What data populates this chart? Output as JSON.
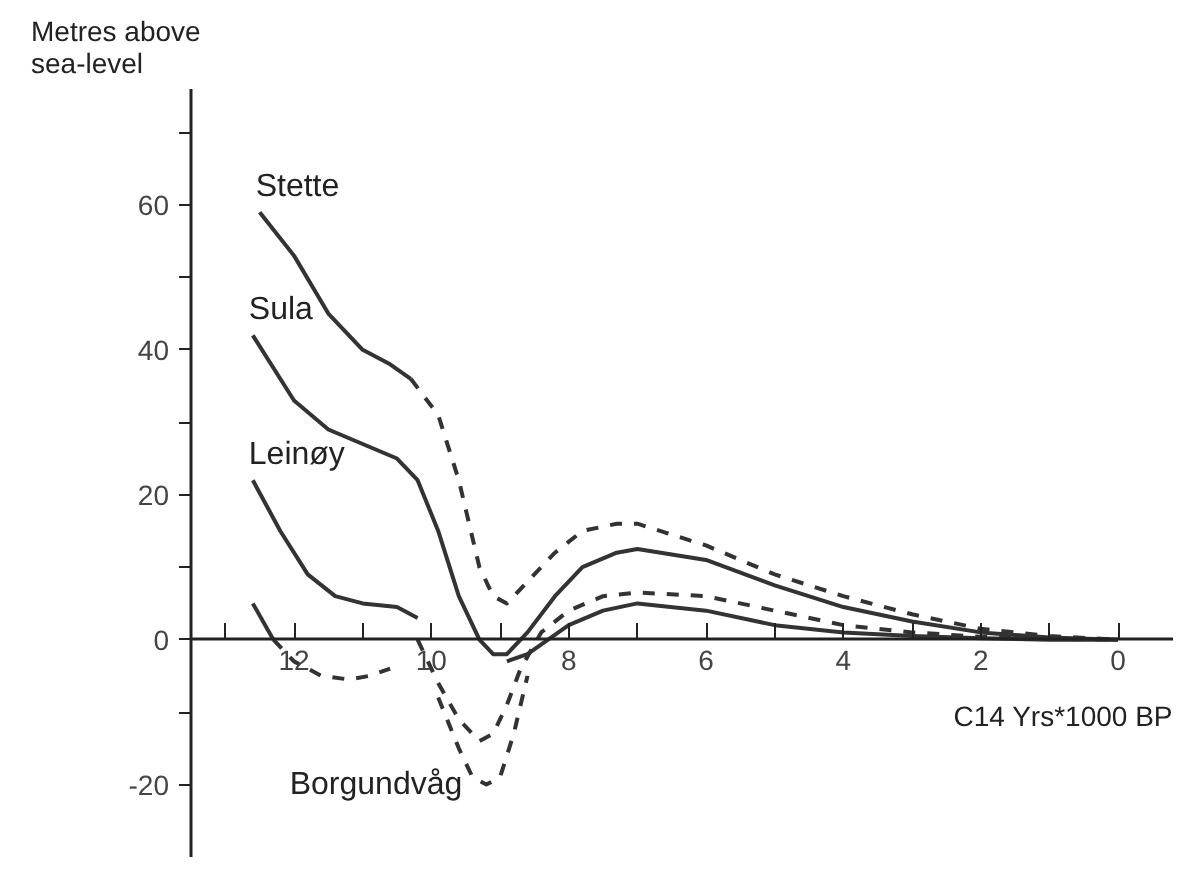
{
  "chart_data": {
    "type": "line",
    "ylabel": "Metres above sea-level",
    "xlabel": "C14 Yrs*1000 BP",
    "xlim": [
      13.5,
      -0.8
    ],
    "ylim": [
      -30,
      76
    ],
    "xticks": [
      {
        "value": 13,
        "label": null
      },
      12,
      {
        "value": 11,
        "label": null
      },
      10,
      {
        "value": 9,
        "label": null
      },
      8,
      {
        "value": 7,
        "label": null
      },
      6,
      {
        "value": 5,
        "label": null
      },
      4,
      {
        "value": 3,
        "label": null
      },
      2,
      {
        "value": 1,
        "label": null
      },
      0
    ],
    "yticks": [
      -20,
      {
        "value": -10,
        "label": null
      },
      0,
      {
        "value": 10,
        "label": null
      },
      20,
      {
        "value": 30,
        "label": null
      },
      40,
      {
        "value": 50,
        "label": null
      },
      60,
      {
        "value": 70,
        "label": null
      }
    ],
    "grid": false,
    "series": [
      {
        "color": "#333333",
        "line_style": "solid",
        "x": [
          12.5,
          12.0,
          11.5,
          11.0,
          10.6,
          10.3
        ],
        "values": [
          59,
          53,
          45,
          40,
          38,
          36
        ]
      },
      {
        "color": "#333333",
        "line_style": "dashed",
        "x": [
          10.3,
          9.9,
          9.6,
          9.3,
          9.1,
          8.9,
          8.6,
          8.2,
          7.8,
          7.3,
          7.0,
          6.0,
          5.0,
          4.0,
          3.0,
          2.0,
          1.0,
          0.0
        ],
        "values": [
          36,
          31,
          22,
          10,
          6,
          5,
          8,
          12,
          15,
          16,
          16,
          13,
          9,
          6,
          3.5,
          1.5,
          0.5,
          0
        ]
      },
      {
        "color": "#333333",
        "line_style": "solid",
        "x": [
          12.6,
          12.0,
          11.5,
          11.0,
          10.5,
          10.2,
          9.9,
          9.6,
          9.3,
          9.1,
          8.9,
          8.6,
          8.2,
          7.8,
          7.3,
          7.0,
          6.0,
          5.0,
          4.0,
          3.0,
          2.0,
          1.0,
          0.0
        ],
        "values": [
          42,
          33,
          29,
          27,
          25,
          22,
          15,
          6,
          0,
          -2,
          -2,
          1,
          6,
          10,
          12,
          12.5,
          11,
          7.5,
          4.5,
          2.5,
          1,
          0.3,
          0
        ]
      },
      {
        "color": "#333333",
        "line_style": "solid",
        "x": [
          12.6,
          12.2,
          11.8,
          11.4,
          11.0,
          10.5,
          10.2
        ],
        "values": [
          22,
          15,
          9,
          6,
          5,
          4.5,
          3
        ]
      },
      {
        "color": "#333333",
        "line_style": "dashed",
        "x": [
          10.2,
          9.9,
          9.6,
          9.3,
          9.1,
          8.9,
          8.7,
          8.4,
          8.0,
          7.5,
          7.0,
          6.0,
          5.0,
          4.0,
          3.0,
          2.0,
          1.0,
          0.0
        ],
        "values": [
          0,
          -6,
          -11,
          -14,
          -13,
          -9,
          -4,
          1,
          4,
          6,
          6.5,
          6,
          4,
          2,
          1,
          0.4,
          0.1,
          0
        ]
      },
      {
        "color": "#333333",
        "line_style": "solid",
        "x": [
          12.6,
          12.3
        ],
        "values": [
          5,
          0
        ]
      },
      {
        "color": "#333333",
        "line_style": "dashed",
        "x": [
          12.3,
          12.0,
          11.6,
          11.2,
          10.9,
          10.6
        ],
        "values": [
          0,
          -3,
          -5,
          -5.5,
          -5,
          -4
        ]
      },
      {
        "color": "#333333",
        "line_style": "dashed",
        "x": [
          9.9,
          9.6,
          9.4,
          9.2,
          9.0,
          8.8,
          8.6
        ],
        "values": [
          -8,
          -15,
          -19,
          -20,
          -19,
          -13,
          -5
        ]
      },
      {
        "color": "#333333",
        "line_style": "solid",
        "x": [
          8.9,
          8.6,
          8.3,
          8.0,
          7.5,
          7.0,
          6.0,
          5.0,
          4.0,
          3.0,
          2.0,
          1.0,
          0.0
        ],
        "values": [
          -3,
          -2,
          0,
          2,
          4,
          5,
          4,
          2,
          1,
          0.5,
          0.2,
          0,
          0
        ]
      }
    ],
    "annotations": [
      {
        "text": "Stette",
        "x": 12.5,
        "y": 59
      },
      {
        "text": "Sula",
        "x": 12.6,
        "y": 42
      },
      {
        "text": "Leinøy",
        "x": 12.6,
        "y": 22
      },
      {
        "text": "Borgundvåg",
        "x": 9.2,
        "y": -20
      }
    ]
  }
}
